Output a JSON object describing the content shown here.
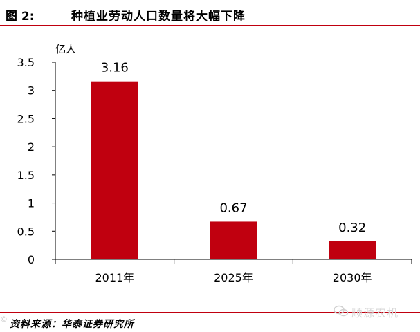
{
  "header": {
    "figure_label": "图 2:",
    "title": "种植业劳动人口数量将大幅下降"
  },
  "chart_data": {
    "type": "bar",
    "categories": [
      "2011年",
      "2025年",
      "2030年"
    ],
    "values": [
      3.16,
      0.67,
      0.32
    ],
    "data_labels": [
      "3.16",
      "0.67",
      "0.32"
    ],
    "ylabel": "亿人",
    "ylim": [
      0,
      3.5
    ],
    "yticks": [
      0,
      0.5,
      1,
      1.5,
      2,
      2.5,
      3,
      3.5
    ],
    "ytick_labels": [
      "0",
      "0.5",
      "1",
      "1.5",
      "2",
      "2.5",
      "3",
      "3.5"
    ],
    "grid": false,
    "bar_color": "#c0000f"
  },
  "footer": {
    "source": "资料来源：华泰证券研究所",
    "watermark": "顺源农机",
    "watermark_left": "©"
  }
}
